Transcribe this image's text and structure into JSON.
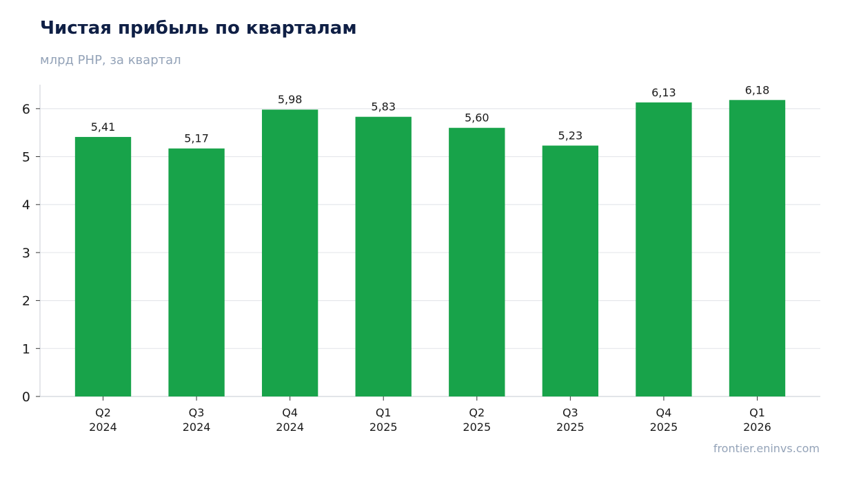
{
  "header": {
    "title": "Чистая прибыль по кварталам",
    "subtitle": "млрд РНР, за квартал"
  },
  "footer": {
    "source": "frontier.eninvs.com"
  },
  "colors": {
    "bar": "#18a34a",
    "title": "#0f1f45",
    "muted": "#94a3b8",
    "grid": "#e5e7eb",
    "axis": "#d1d5db"
  },
  "chart_data": {
    "type": "bar",
    "title": "Чистая прибыль по кварталам",
    "subtitle": "млрд РНР, за квартал",
    "categories": [
      [
        "Q2",
        "2024"
      ],
      [
        "Q3",
        "2024"
      ],
      [
        "Q4",
        "2024"
      ],
      [
        "Q1",
        "2025"
      ],
      [
        "Q2",
        "2025"
      ],
      [
        "Q3",
        "2025"
      ],
      [
        "Q4",
        "2025"
      ],
      [
        "Q1",
        "2026"
      ]
    ],
    "values": [
      5.41,
      5.17,
      5.98,
      5.83,
      5.6,
      5.23,
      6.13,
      6.18
    ],
    "data_labels": [
      "5,41",
      "5,17",
      "5,98",
      "5,83",
      "5,60",
      "5,23",
      "6,13",
      "6,18"
    ],
    "yticks": [
      0,
      1,
      2,
      3,
      4,
      5,
      6
    ],
    "ylim": [
      0,
      6.5
    ],
    "grid": true,
    "legend": "none"
  }
}
